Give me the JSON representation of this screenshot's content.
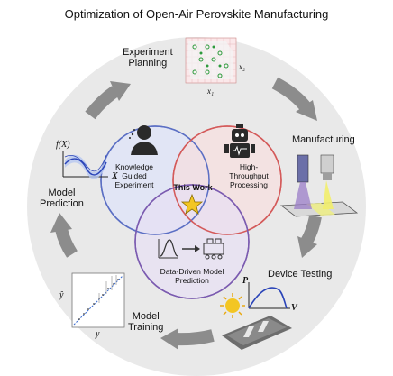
{
  "title": "Optimization of Open-Air Perovskite Manufacturing",
  "stages": {
    "experiment_planning": [
      "Experiment",
      "Planning"
    ],
    "manufacturing": "Manufacturing",
    "device_testing": "Device Testing",
    "model_training": [
      "Model",
      "Training"
    ],
    "model_prediction": [
      "Model",
      "Prediction"
    ]
  },
  "venn": {
    "knowledge": [
      "Knowledge",
      "Guided",
      "Experiment"
    ],
    "throughput": [
      "High-",
      "Throughput",
      "Processing"
    ],
    "data_driven": [
      "Data-Driven Model",
      "Prediction"
    ],
    "center": "This Work"
  },
  "axes": {
    "planning_x": "x₁",
    "planning_y": "x₂",
    "prediction_fx": "f(X)",
    "prediction_x": "X",
    "testing_p": "P",
    "testing_v": "V",
    "training_yhat": "ŷ",
    "training_y": "y"
  },
  "colors": {
    "ring": "#e9e9e9",
    "arrow": "#8c8c8c",
    "circle_blue": "#5b6fc4",
    "circle_red": "#d45a5a",
    "circle_purple": "#7b5bb0",
    "star": "#f3c623",
    "grid_green": "#2e9a3c"
  }
}
